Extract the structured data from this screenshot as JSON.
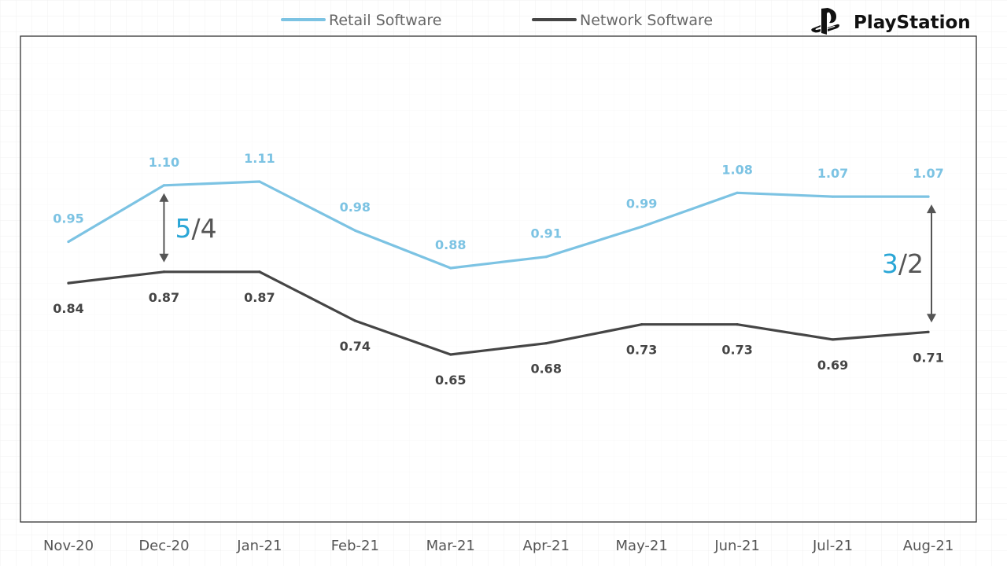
{
  "brand": {
    "name": "PlayStation",
    "icon": "playstation-logo-icon"
  },
  "chart_data": {
    "type": "line",
    "title": "",
    "xlabel": "",
    "ylabel": "",
    "ylim": [
      0,
      1.5
    ],
    "grid": true,
    "legend": "top-center",
    "categories": [
      "Nov-20",
      "Dec-20",
      "Jan-21",
      "Feb-21",
      "Mar-21",
      "Apr-21",
      "May-21",
      "Jun-21",
      "Jul-21",
      "Aug-21"
    ],
    "series": [
      {
        "name": "Retail Software",
        "color": "#7cc3e3",
        "values": [
          0.95,
          1.1,
          1.11,
          0.98,
          0.88,
          0.91,
          0.99,
          1.08,
          1.07,
          1.07
        ],
        "labels": [
          "0.95",
          "1.10",
          "1.11",
          "0.98",
          "0.88",
          "0.91",
          "0.99",
          "1.08",
          "1.07",
          "1.07"
        ]
      },
      {
        "name": "Network Software",
        "color": "#454545",
        "values": [
          0.84,
          0.87,
          0.87,
          0.74,
          0.65,
          0.68,
          0.73,
          0.73,
          0.69,
          0.71
        ],
        "labels": [
          "0.84",
          "0.87",
          "0.87",
          "0.74",
          "0.65",
          "0.68",
          "0.73",
          "0.73",
          "0.69",
          "0.71"
        ]
      }
    ],
    "annotations": [
      {
        "category": "Dec-20",
        "numerator": "5",
        "separator": "/",
        "denominator": "4"
      },
      {
        "category": "Aug-21",
        "numerator": "3",
        "separator": "/",
        "denominator": "2"
      }
    ],
    "colors": {
      "numerator": "#2aa6d6",
      "denominator": "#555555",
      "arrow": "#555555",
      "frame": "#333333",
      "grid": "#ececec"
    }
  }
}
